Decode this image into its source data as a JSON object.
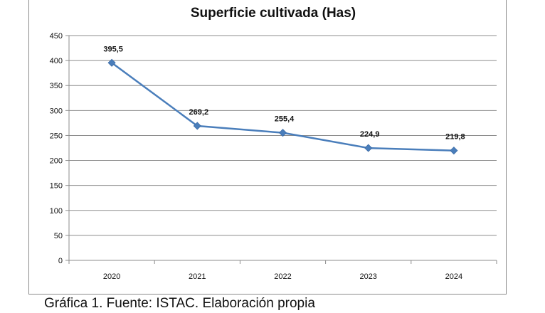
{
  "chart_data": {
    "type": "line",
    "title": "Superficie cultivada (Has)",
    "xlabel": "",
    "ylabel": "",
    "categories": [
      "2020",
      "2021",
      "2022",
      "2023",
      "2024"
    ],
    "series": [
      {
        "name": "Superficie cultivada (Has)",
        "values": [
          395.5,
          269.2,
          255.4,
          224.9,
          219.8
        ],
        "data_labels": [
          "395,5",
          "269,2",
          "255,4",
          "224,9",
          "219,8"
        ],
        "color": "#4a7ebb",
        "marker": "diamond"
      }
    ],
    "ylim": [
      0,
      450
    ],
    "yticks": [
      0,
      50,
      100,
      150,
      200,
      250,
      300,
      350,
      400,
      450
    ],
    "grid": true,
    "legend": "none"
  },
  "caption": "Gráfica 1. Fuente: ISTAC. Elaboración propia",
  "colors": {
    "line": "#4a7ebb",
    "grid": "#8c8c8c",
    "axis": "#8c8c8c",
    "frame": "#8a8a8a"
  }
}
